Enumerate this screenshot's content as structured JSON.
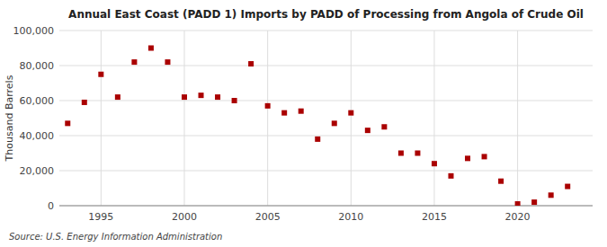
{
  "chart_data": {
    "type": "scatter",
    "title": "Annual East Coast (PADD 1) Imports by PADD of Processing from Angola of Crude Oil",
    "ylabel": "Thousand Barrels",
    "annotations": [
      "Source: U.S. Energy Information Administration"
    ],
    "color": "#aa0000",
    "marker": "square",
    "x": [
      1993,
      1994,
      1995,
      1996,
      1997,
      1998,
      1999,
      2000,
      2001,
      2002,
      2003,
      2004,
      2005,
      2006,
      2007,
      2008,
      2009,
      2010,
      2011,
      2012,
      2013,
      2014,
      2015,
      2016,
      2017,
      2018,
      2019,
      2020,
      2021,
      2022,
      2023
    ],
    "values": [
      47000,
      59000,
      75000,
      62000,
      82000,
      90000,
      82000,
      62000,
      63000,
      62000,
      60000,
      81000,
      57000,
      53000,
      54000,
      38000,
      47000,
      53000,
      43000,
      45000,
      30000,
      30000,
      24000,
      17000,
      27000,
      28000,
      14000,
      1000,
      2000,
      6000,
      11000
    ],
    "xlim": [
      1992.5,
      2024.5
    ],
    "xticks": [
      1995,
      2000,
      2005,
      2010,
      2015,
      2020
    ],
    "ylim": [
      0,
      100000
    ],
    "yticks": [
      0,
      {
        "value": 20000,
        "label": "20,000"
      },
      {
        "value": 40000,
        "label": "40,000"
      },
      {
        "value": 60000,
        "label": "60,000"
      },
      {
        "value": 80000,
        "label": "80,000"
      },
      {
        "value": 100000,
        "label": "100,000"
      }
    ],
    "grid": true
  }
}
